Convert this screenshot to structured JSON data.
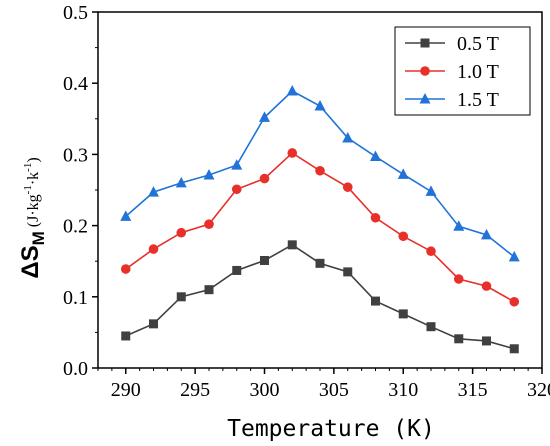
{
  "chart_data": {
    "type": "line",
    "xlabel": "Temperature (K)",
    "ylabel": {
      "delta": "Δ",
      "symbol": "S",
      "subscript": "M",
      "unit_open": " (J·kg",
      "unit_exp1": "-1",
      "unit_mid": "·k",
      "unit_exp2": "-1",
      "unit_close": ")"
    },
    "xlim": [
      288,
      320
    ],
    "ylim": [
      0,
      0.5
    ],
    "xticks": [
      290,
      295,
      300,
      305,
      310,
      315,
      320
    ],
    "yticks": [
      "0.0",
      "0.1",
      "0.2",
      "0.3",
      "0.4",
      "0.5"
    ],
    "grid": false,
    "legend_position": "top-right",
    "x": [
      290,
      292,
      294,
      296,
      298,
      300,
      302,
      304,
      306,
      308,
      310,
      312,
      314,
      316,
      318
    ],
    "series": [
      {
        "name": "0.5 T",
        "color": "#404040",
        "marker": "square",
        "values": [
          0.045,
          0.062,
          0.1,
          0.11,
          0.137,
          0.151,
          0.173,
          0.147,
          0.135,
          0.094,
          0.076,
          0.058,
          0.041,
          0.038,
          0.027
        ]
      },
      {
        "name": "1.0 T",
        "color": "#e8302a",
        "marker": "circle",
        "values": [
          0.139,
          0.167,
          0.19,
          0.202,
          0.251,
          0.266,
          0.302,
          0.277,
          0.254,
          0.211,
          0.185,
          0.164,
          0.125,
          0.115,
          0.093
        ]
      },
      {
        "name": "1.5 T",
        "color": "#2173d8",
        "marker": "triangle",
        "values": [
          0.213,
          0.247,
          0.26,
          0.271,
          0.285,
          0.352,
          0.389,
          0.368,
          0.323,
          0.297,
          0.272,
          0.248,
          0.199,
          0.187,
          0.156
        ]
      }
    ]
  }
}
